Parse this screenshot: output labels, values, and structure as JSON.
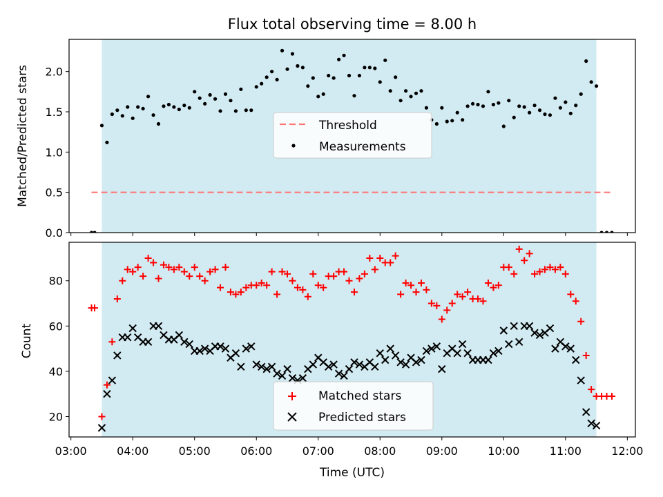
{
  "title": "Flux total observing time = 8.00 h",
  "colors": {
    "band": "#add8e6",
    "threshold": "#ff7777",
    "measurements": "#000000",
    "matched": "#ff0000",
    "predicted": "#000000"
  },
  "chart_data": [
    {
      "type": "scatter",
      "panel": "top",
      "ylabel": "Matched/Predicted stars",
      "xlim": [
        "03:00",
        "12:00"
      ],
      "ylim": [
        0,
        2.4
      ],
      "yticks": [
        "0.0",
        "0.5",
        "1.0",
        "1.5",
        "2.0"
      ],
      "shaded_span": [
        "03:30",
        "11:30"
      ],
      "legend": [
        "Threshold",
        "Measurements"
      ],
      "legend_position": "center",
      "threshold": {
        "name": "Threshold",
        "y": 0.5,
        "x": [
          "03:20",
          "11:45"
        ]
      },
      "series": [
        {
          "name": "Measurements",
          "x": [
            "03:20",
            "03:23",
            "03:30",
            "03:35",
            "03:40",
            "03:45",
            "03:50",
            "03:55",
            "04:00",
            "04:05",
            "04:10",
            "04:15",
            "04:20",
            "04:25",
            "04:30",
            "04:35",
            "04:40",
            "04:45",
            "04:50",
            "04:55",
            "05:00",
            "05:05",
            "05:10",
            "05:15",
            "05:20",
            "05:25",
            "05:30",
            "05:35",
            "05:40",
            "05:45",
            "05:50",
            "05:55",
            "06:00",
            "06:05",
            "06:10",
            "06:15",
            "06:20",
            "06:25",
            "06:30",
            "06:35",
            "06:40",
            "06:45",
            "06:50",
            "06:55",
            "07:00",
            "07:05",
            "07:10",
            "07:15",
            "07:20",
            "07:25",
            "07:30",
            "07:35",
            "07:40",
            "07:45",
            "07:50",
            "07:55",
            "08:00",
            "08:05",
            "08:10",
            "08:15",
            "08:20",
            "08:25",
            "08:30",
            "08:35",
            "08:40",
            "08:45",
            "08:50",
            "08:55",
            "09:00",
            "09:05",
            "09:10",
            "09:15",
            "09:20",
            "09:25",
            "09:30",
            "09:35",
            "09:40",
            "09:45",
            "09:50",
            "09:55",
            "10:00",
            "10:05",
            "10:10",
            "10:15",
            "10:20",
            "10:25",
            "10:30",
            "10:35",
            "10:40",
            "10:45",
            "10:50",
            "10:55",
            "11:00",
            "11:05",
            "11:10",
            "11:15",
            "11:20",
            "11:25",
            "11:30",
            "11:35",
            "11:40",
            "11:45"
          ],
          "y": [
            0,
            0,
            1.33,
            1.12,
            1.47,
            1.52,
            1.45,
            1.56,
            1.42,
            1.56,
            1.54,
            1.69,
            1.46,
            1.35,
            1.57,
            1.59,
            1.56,
            1.53,
            1.58,
            1.55,
            1.75,
            1.67,
            1.6,
            1.71,
            1.66,
            1.51,
            1.72,
            1.64,
            1.51,
            1.78,
            1.52,
            1.52,
            1.81,
            1.85,
            1.93,
            2.0,
            1.9,
            2.26,
            2.03,
            2.22,
            2.07,
            2.05,
            1.82,
            1.92,
            1.69,
            1.72,
            1.95,
            1.92,
            2.15,
            2.2,
            1.95,
            1.7,
            1.95,
            2.05,
            2.05,
            2.04,
            1.87,
            2.14,
            1.76,
            1.93,
            1.64,
            1.76,
            1.69,
            1.73,
            1.76,
            1.55,
            1.4,
            1.35,
            1.55,
            1.38,
            1.39,
            1.49,
            1.4,
            1.57,
            1.6,
            1.59,
            1.57,
            1.75,
            1.59,
            1.61,
            1.32,
            1.64,
            1.43,
            1.57,
            1.56,
            1.49,
            1.58,
            1.52,
            1.47,
            1.46,
            1.67,
            1.55,
            1.62,
            1.48,
            1.58,
            1.72,
            2.13,
            1.87,
            1.82,
            0,
            0,
            0
          ]
        }
      ]
    },
    {
      "type": "scatter",
      "panel": "bottom",
      "xlabel": "Time (UTC)",
      "ylabel": "Count",
      "xlim": [
        "03:00",
        "12:00"
      ],
      "xticks": [
        "03:00",
        "04:00",
        "05:00",
        "06:00",
        "07:00",
        "08:00",
        "09:00",
        "10:00",
        "11:00",
        "12:00"
      ],
      "ylim": [
        11,
        97
      ],
      "yticks": [
        "20",
        "40",
        "60",
        "80"
      ],
      "shaded_span": [
        "03:30",
        "11:30"
      ],
      "legend": [
        "Matched stars",
        "Predicted stars"
      ],
      "legend_position": "lower center",
      "series": [
        {
          "name": "Matched stars",
          "x": [
            "03:20",
            "03:23",
            "03:30",
            "03:35",
            "03:40",
            "03:45",
            "03:50",
            "03:55",
            "04:00",
            "04:05",
            "04:10",
            "04:15",
            "04:20",
            "04:25",
            "04:30",
            "04:35",
            "04:40",
            "04:45",
            "04:50",
            "04:55",
            "05:00",
            "05:05",
            "05:10",
            "05:15",
            "05:20",
            "05:25",
            "05:30",
            "05:35",
            "05:40",
            "05:45",
            "05:50",
            "05:55",
            "06:00",
            "06:05",
            "06:10",
            "06:15",
            "06:20",
            "06:25",
            "06:30",
            "06:35",
            "06:40",
            "06:45",
            "06:50",
            "06:55",
            "07:00",
            "07:05",
            "07:10",
            "07:15",
            "07:20",
            "07:25",
            "07:30",
            "07:35",
            "07:40",
            "07:45",
            "07:50",
            "07:55",
            "08:00",
            "08:05",
            "08:10",
            "08:15",
            "08:20",
            "08:25",
            "08:30",
            "08:35",
            "08:40",
            "08:45",
            "08:50",
            "08:55",
            "09:00",
            "09:05",
            "09:10",
            "09:15",
            "09:20",
            "09:25",
            "09:30",
            "09:35",
            "09:40",
            "09:45",
            "09:50",
            "09:55",
            "10:00",
            "10:05",
            "10:10",
            "10:15",
            "10:20",
            "10:25",
            "10:30",
            "10:35",
            "10:40",
            "10:45",
            "10:50",
            "10:55",
            "11:00",
            "11:05",
            "11:10",
            "11:15",
            "11:20",
            "11:25",
            "11:30",
            "11:35",
            "11:40",
            "11:45"
          ],
          "y": [
            68,
            68,
            20,
            34,
            53,
            72,
            80,
            85,
            84,
            86,
            82,
            90,
            88,
            81,
            87,
            86,
            85,
            86,
            84,
            82,
            86,
            82,
            80,
            84,
            85,
            77,
            86,
            75,
            74,
            75,
            77,
            78,
            78,
            79,
            78,
            84,
            74,
            84,
            83,
            80,
            77,
            76,
            73,
            83,
            78,
            77,
            82,
            82,
            84,
            84,
            80,
            75,
            81,
            83,
            90,
            85,
            90,
            88,
            88,
            91,
            74,
            79,
            78,
            75,
            79,
            76,
            70,
            69,
            63,
            67,
            70,
            74,
            73,
            75,
            72,
            72,
            71,
            79,
            77,
            78,
            86,
            86,
            83,
            94,
            89,
            92,
            83,
            84,
            85,
            86,
            85,
            86,
            83,
            74,
            71,
            62,
            47,
            32,
            29,
            29,
            29,
            29
          ]
        },
        {
          "name": "Predicted stars",
          "x": [
            "03:30",
            "03:35",
            "03:40",
            "03:45",
            "03:50",
            "03:55",
            "04:00",
            "04:05",
            "04:10",
            "04:15",
            "04:20",
            "04:25",
            "04:30",
            "04:35",
            "04:40",
            "04:45",
            "04:50",
            "04:55",
            "05:00",
            "05:05",
            "05:10",
            "05:15",
            "05:20",
            "05:25",
            "05:30",
            "05:35",
            "05:40",
            "05:45",
            "05:50",
            "05:55",
            "06:00",
            "06:05",
            "06:10",
            "06:15",
            "06:20",
            "06:25",
            "06:30",
            "06:35",
            "06:40",
            "06:45",
            "06:50",
            "06:55",
            "07:00",
            "07:05",
            "07:10",
            "07:15",
            "07:20",
            "07:25",
            "07:30",
            "07:35",
            "07:40",
            "07:45",
            "07:50",
            "07:55",
            "08:00",
            "08:05",
            "08:10",
            "08:15",
            "08:20",
            "08:25",
            "08:30",
            "08:35",
            "08:40",
            "08:45",
            "08:50",
            "08:55",
            "09:00",
            "09:05",
            "09:10",
            "09:15",
            "09:20",
            "09:25",
            "09:30",
            "09:35",
            "09:40",
            "09:45",
            "09:50",
            "09:55",
            "10:00",
            "10:05",
            "10:10",
            "10:15",
            "10:20",
            "10:25",
            "10:30",
            "10:35",
            "10:40",
            "10:45",
            "10:50",
            "10:55",
            "11:00",
            "11:05",
            "11:10",
            "11:15",
            "11:20",
            "11:25",
            "11:30"
          ],
          "y": [
            15,
            30,
            36,
            47,
            55,
            55,
            59,
            55,
            53,
            53,
            60,
            60,
            56,
            54,
            54,
            56,
            53,
            52,
            49,
            49,
            50,
            49,
            51,
            51,
            50,
            46,
            48,
            42,
            50,
            51,
            43,
            42,
            41,
            42,
            39,
            38,
            41,
            37,
            36,
            37,
            41,
            43,
            46,
            44,
            42,
            43,
            39,
            38,
            41,
            44,
            43,
            42,
            44,
            42,
            48,
            45,
            50,
            47,
            44,
            43,
            46,
            44,
            45,
            49,
            50,
            51,
            41,
            48,
            50,
            48,
            52,
            48,
            45,
            45,
            45,
            45,
            48,
            49,
            58,
            52,
            60,
            53,
            60,
            60,
            57,
            56,
            57,
            59,
            50,
            53,
            51,
            50,
            45,
            36,
            22,
            17,
            16
          ]
        }
      ]
    }
  ]
}
